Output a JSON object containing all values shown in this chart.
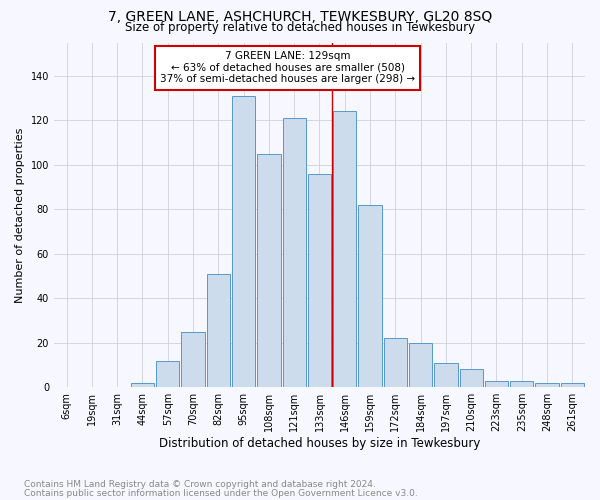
{
  "title": "7, GREEN LANE, ASHCHURCH, TEWKESBURY, GL20 8SQ",
  "subtitle": "Size of property relative to detached houses in Tewkesbury",
  "xlabel": "Distribution of detached houses by size in Tewkesbury",
  "ylabel": "Number of detached properties",
  "footnote1": "Contains HM Land Registry data © Crown copyright and database right 2024.",
  "footnote2": "Contains public sector information licensed under the Open Government Licence v3.0.",
  "categories": [
    "6sqm",
    "19sqm",
    "31sqm",
    "44sqm",
    "57sqm",
    "70sqm",
    "82sqm",
    "95sqm",
    "108sqm",
    "121sqm",
    "133sqm",
    "146sqm",
    "159sqm",
    "172sqm",
    "184sqm",
    "197sqm",
    "210sqm",
    "223sqm",
    "235sqm",
    "248sqm",
    "261sqm"
  ],
  "values": [
    0,
    0,
    0,
    2,
    12,
    25,
    51,
    131,
    105,
    121,
    96,
    124,
    82,
    22,
    20,
    11,
    8,
    3,
    3,
    2,
    2
  ],
  "bar_color": "#ccdcec",
  "bar_edge_color": "#5599cc",
  "bar_edge_width": 0.7,
  "grid_color": "#d0d0d8",
  "background_color": "#f7f7ff",
  "vline_x_index": 10.5,
  "vline_color": "#cc0000",
  "annotation_title": "7 GREEN LANE: 129sqm",
  "annotation_line1": "← 63% of detached houses are smaller (508)",
  "annotation_line2": "37% of semi-detached houses are larger (298) →",
  "annotation_box_color": "#ffffff",
  "annotation_border_color": "#cc0000",
  "ylim": [
    0,
    155
  ],
  "yticks": [
    0,
    20,
    40,
    60,
    80,
    100,
    120,
    140
  ],
  "title_fontsize": 10,
  "subtitle_fontsize": 8.5,
  "xlabel_fontsize": 8.5,
  "ylabel_fontsize": 8,
  "tick_fontsize": 7,
  "footnote_fontsize": 6.5,
  "annotation_fontsize": 7.5
}
